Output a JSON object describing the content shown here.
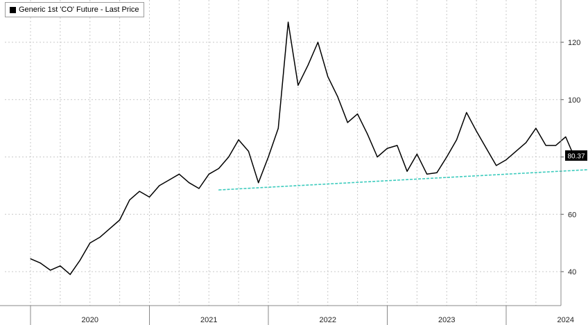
{
  "chart_data": {
    "type": "line",
    "series": [
      {
        "name": "Generic 1st 'CO' Future - Last Price",
        "color": "#000000",
        "x": [
          "2020-01",
          "2020-02",
          "2020-03",
          "2020-04",
          "2020-05",
          "2020-06",
          "2020-07",
          "2020-08",
          "2020-09",
          "2020-10",
          "2020-11",
          "2020-12",
          "2021-01",
          "2021-02",
          "2021-03",
          "2021-04",
          "2021-05",
          "2021-06",
          "2021-07",
          "2021-08",
          "2021-09",
          "2021-10",
          "2021-11",
          "2021-12",
          "2022-01",
          "2022-02",
          "2022-03",
          "2022-04",
          "2022-05",
          "2022-06",
          "2022-07",
          "2022-08",
          "2022-09",
          "2022-10",
          "2022-11",
          "2022-12",
          "2023-01",
          "2023-02",
          "2023-03",
          "2023-04",
          "2023-05",
          "2023-06",
          "2023-07",
          "2023-08",
          "2023-09",
          "2023-10",
          "2023-11",
          "2023-12",
          "2024-01",
          "2024-02",
          "2024-03",
          "2024-04",
          "2024-05",
          "2024-06",
          "2024-07",
          "2024-08",
          "2024-09"
        ],
        "values": [
          44.5,
          43.0,
          40.5,
          42.0,
          39.0,
          44.0,
          50.0,
          52.0,
          55.0,
          58.0,
          65.0,
          68.0,
          66.0,
          70.0,
          72.0,
          74.0,
          71.0,
          69.0,
          74.0,
          76.0,
          80.0,
          86.0,
          82.0,
          71.0,
          80.0,
          90.0,
          127.0,
          105.0,
          112.0,
          120.0,
          108.0,
          101.0,
          92.0,
          95.0,
          88.0,
          80.0,
          83.0,
          84.0,
          75.0,
          81.0,
          74.0,
          74.5,
          80.0,
          86.0,
          95.5,
          89.0,
          83.0,
          77.0,
          79.0,
          82.0,
          85.0,
          90.0,
          84.0,
          84.0,
          87.0,
          79.0,
          80.37
        ]
      },
      {
        "name": "",
        "style": "dashed",
        "color": "#3ccbbd",
        "x": [
          "2021-08",
          "2024-10"
        ],
        "values": [
          68.5,
          75.7
        ]
      }
    ],
    "x_ticks": [
      "2020",
      "2021",
      "2022",
      "2023",
      "2024"
    ],
    "y_ticks": [
      40,
      60,
      80,
      100,
      120
    ],
    "ylim": [
      28,
      135
    ],
    "last_value_label": "80.37",
    "title": "",
    "xlabel": "",
    "ylabel": "",
    "grid": true,
    "legend": "top-left"
  },
  "legend": {
    "label": "Generic 1st 'CO' Future - Last Price"
  }
}
